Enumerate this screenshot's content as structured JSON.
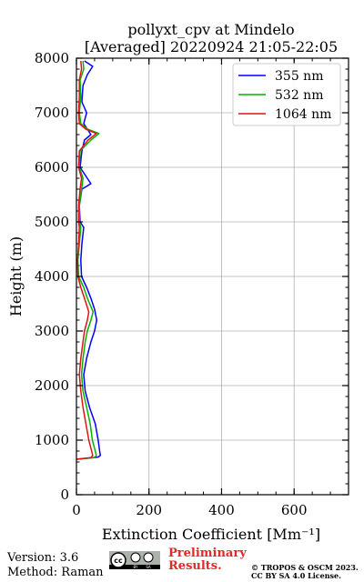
{
  "chart_data": {
    "type": "line",
    "title": "pollyxt_cpv at Mindelo",
    "subtitle": "[Averaged] 20220924 21:05-22:05",
    "xlabel": "Extinction Coefficient [Mm⁻¹]",
    "ylabel": "Height (m)",
    "xlim": [
      0,
      750
    ],
    "ylim": [
      0,
      8000
    ],
    "xticks": [
      "0",
      "200",
      "400",
      "600"
    ],
    "yticks": [
      "0",
      "1000",
      "2000",
      "3000",
      "4000",
      "5000",
      "6000",
      "7000",
      "8000"
    ],
    "grid": true,
    "legend_position": "top-right",
    "series": [
      {
        "name": "355 nm",
        "color": "#0000ff",
        "points": [
          [
            0,
            650
          ],
          [
            60,
            690
          ],
          [
            66,
            720
          ],
          [
            64,
            800
          ],
          [
            60,
            1000
          ],
          [
            52,
            1300
          ],
          [
            36,
            1600
          ],
          [
            24,
            1900
          ],
          [
            20,
            2200
          ],
          [
            28,
            2500
          ],
          [
            40,
            2800
          ],
          [
            50,
            3000
          ],
          [
            56,
            3200
          ],
          [
            50,
            3400
          ],
          [
            40,
            3600
          ],
          [
            28,
            3800
          ],
          [
            14,
            4000
          ],
          [
            12,
            4300
          ],
          [
            15,
            4600
          ],
          [
            20,
            4900
          ],
          [
            10,
            5000
          ],
          [
            8,
            5300
          ],
          [
            15,
            5600
          ],
          [
            40,
            5700
          ],
          [
            10,
            6000
          ],
          [
            15,
            6300
          ],
          [
            22,
            6500
          ],
          [
            40,
            6600
          ],
          [
            20,
            6800
          ],
          [
            28,
            7000
          ],
          [
            15,
            7200
          ],
          [
            18,
            7500
          ],
          [
            30,
            7700
          ],
          [
            45,
            7850
          ],
          [
            22,
            7950
          ]
        ]
      },
      {
        "name": "532 nm",
        "color": "#00b400",
        "points": [
          [
            0,
            650
          ],
          [
            50,
            680
          ],
          [
            55,
            720
          ],
          [
            52,
            800
          ],
          [
            44,
            1000
          ],
          [
            38,
            1300
          ],
          [
            28,
            1600
          ],
          [
            18,
            1900
          ],
          [
            14,
            2200
          ],
          [
            18,
            2500
          ],
          [
            24,
            2800
          ],
          [
            30,
            3000
          ],
          [
            40,
            3200
          ],
          [
            46,
            3350
          ],
          [
            30,
            3600
          ],
          [
            20,
            3800
          ],
          [
            6,
            4000
          ],
          [
            4,
            4300
          ],
          [
            8,
            4600
          ],
          [
            12,
            4900
          ],
          [
            8,
            5000
          ],
          [
            8,
            5300
          ],
          [
            14,
            5600
          ],
          [
            18,
            5800
          ],
          [
            8,
            6000
          ],
          [
            10,
            6300
          ],
          [
            40,
            6500
          ],
          [
            62,
            6620
          ],
          [
            30,
            6700
          ],
          [
            12,
            6800
          ],
          [
            8,
            7000
          ],
          [
            12,
            7300
          ],
          [
            10,
            7600
          ],
          [
            20,
            7800
          ],
          [
            18,
            7950
          ]
        ]
      },
      {
        "name": "1064 nm",
        "color": "#e11414",
        "points": [
          [
            0,
            650
          ],
          [
            40,
            680
          ],
          [
            45,
            720
          ],
          [
            42,
            800
          ],
          [
            34,
            1000
          ],
          [
            26,
            1300
          ],
          [
            18,
            1600
          ],
          [
            12,
            1900
          ],
          [
            8,
            2200
          ],
          [
            12,
            2500
          ],
          [
            18,
            2800
          ],
          [
            22,
            3000
          ],
          [
            30,
            3200
          ],
          [
            34,
            3350
          ],
          [
            22,
            3600
          ],
          [
            12,
            3800
          ],
          [
            4,
            4000
          ],
          [
            3,
            4300
          ],
          [
            6,
            4600
          ],
          [
            8,
            4900
          ],
          [
            6,
            5000
          ],
          [
            6,
            5300
          ],
          [
            10,
            5600
          ],
          [
            14,
            5800
          ],
          [
            6,
            6000
          ],
          [
            8,
            6300
          ],
          [
            32,
            6500
          ],
          [
            55,
            6620
          ],
          [
            26,
            6700
          ],
          [
            8,
            6800
          ],
          [
            6,
            7000
          ],
          [
            8,
            7300
          ],
          [
            8,
            7600
          ],
          [
            14,
            7800
          ],
          [
            12,
            7950
          ]
        ]
      }
    ]
  },
  "footer": {
    "version": "Version: 3.6",
    "method": "Method: Raman",
    "license_badge": "cc-by-sa-icon",
    "preliminary_line1": "Preliminary",
    "preliminary_line2": "Results.",
    "copyright_line1": "© TROPOS & OSCM 2023.",
    "copyright_line2": "CC BY SA 4.0 License."
  }
}
